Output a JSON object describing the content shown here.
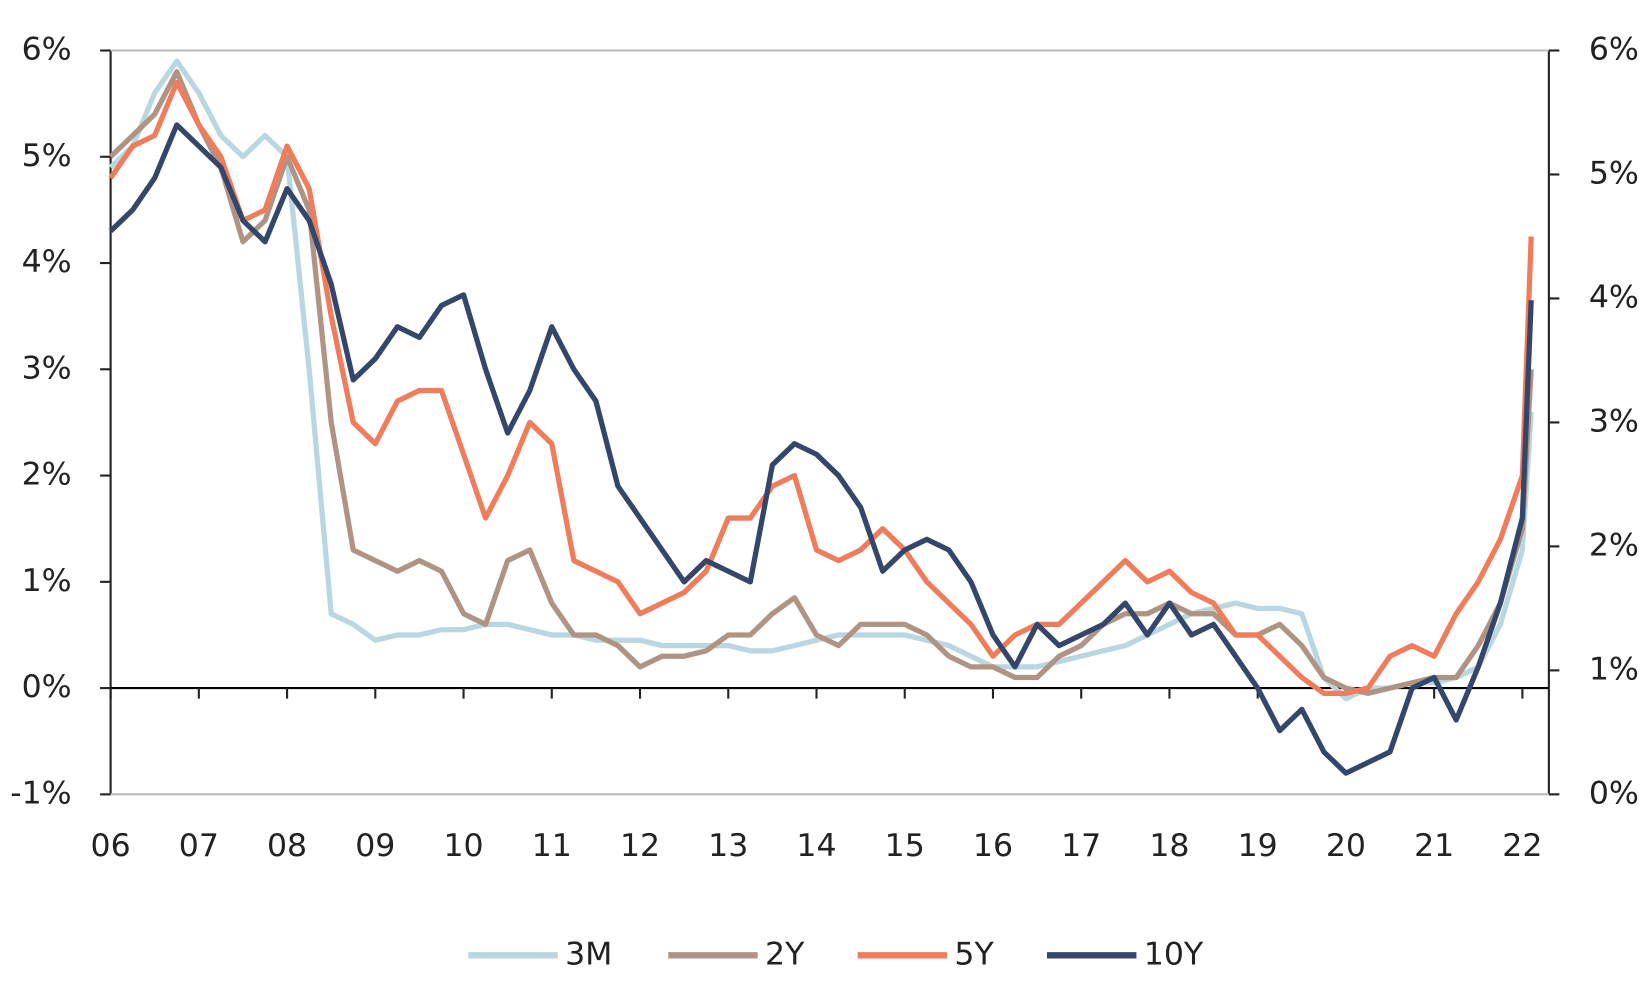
{
  "chart_data": {
    "type": "line",
    "x": [
      2006,
      2006.25,
      2006.5,
      2006.75,
      2007,
      2007.25,
      2007.5,
      2007.75,
      2008,
      2008.25,
      2008.5,
      2008.75,
      2009,
      2009.25,
      2009.5,
      2009.75,
      2010,
      2010.25,
      2010.5,
      2010.75,
      2011,
      2011.25,
      2011.5,
      2011.75,
      2012,
      2012.25,
      2012.5,
      2012.75,
      2013,
      2013.25,
      2013.5,
      2013.75,
      2014,
      2014.25,
      2014.5,
      2014.75,
      2015,
      2015.25,
      2015.5,
      2015.75,
      2016,
      2016.25,
      2016.5,
      2016.75,
      2017,
      2017.25,
      2017.5,
      2017.75,
      2018,
      2018.25,
      2018.5,
      2018.75,
      2019,
      2019.25,
      2019.5,
      2019.75,
      2020,
      2020.25,
      2020.5,
      2020.75,
      2021,
      2021.25,
      2021.5,
      2021.75,
      2022,
      2022.1
    ],
    "xlim": [
      2006,
      2022.3
    ],
    "xticks": [
      {
        "value": 2006,
        "label": "06"
      },
      {
        "value": 2007,
        "label": "07"
      },
      {
        "value": 2008,
        "label": "08"
      },
      {
        "value": 2009,
        "label": "09"
      },
      {
        "value": 2010,
        "label": "10"
      },
      {
        "value": 2011,
        "label": "11"
      },
      {
        "value": 2012,
        "label": "12"
      },
      {
        "value": 2013,
        "label": "13"
      },
      {
        "value": 2014,
        "label": "14"
      },
      {
        "value": 2015,
        "label": "15"
      },
      {
        "value": 2016,
        "label": "16"
      },
      {
        "value": 2017,
        "label": "17"
      },
      {
        "value": 2018,
        "label": "18"
      },
      {
        "value": 2019,
        "label": "19"
      },
      {
        "value": 2020,
        "label": "20"
      },
      {
        "value": 2021,
        "label": "21"
      },
      {
        "value": 2022,
        "label": "22"
      }
    ],
    "ylim": [
      -1,
      6
    ],
    "yticks": [
      {
        "value": -1,
        "label": "-1%"
      },
      {
        "value": 0,
        "label": "0%"
      },
      {
        "value": 1,
        "label": "1%"
      },
      {
        "value": 2,
        "label": "2%"
      },
      {
        "value": 3,
        "label": "3%"
      },
      {
        "value": 4,
        "label": "4%"
      },
      {
        "value": 5,
        "label": "5%"
      },
      {
        "value": 6,
        "label": "6%"
      }
    ],
    "y2lim": [
      0,
      6
    ],
    "y2ticks": [
      {
        "value": 0,
        "label": "0%"
      },
      {
        "value": 1,
        "label": "1%"
      },
      {
        "value": 2,
        "label": "2%"
      },
      {
        "value": 3,
        "label": "3%"
      },
      {
        "value": 4,
        "label": "4%"
      },
      {
        "value": 5,
        "label": "5%"
      },
      {
        "value": 6,
        "label": "6%"
      }
    ],
    "series": [
      {
        "name": "3M",
        "color": "#b9d7e1",
        "values": [
          4.9,
          5.1,
          5.6,
          5.9,
          5.6,
          5.2,
          5.0,
          5.2,
          5.0,
          3.0,
          0.7,
          0.6,
          0.45,
          0.5,
          0.5,
          0.55,
          0.55,
          0.6,
          0.6,
          0.55,
          0.5,
          0.5,
          0.45,
          0.45,
          0.45,
          0.4,
          0.4,
          0.4,
          0.4,
          0.35,
          0.35,
          0.4,
          0.45,
          0.5,
          0.5,
          0.5,
          0.5,
          0.45,
          0.4,
          0.3,
          0.2,
          0.2,
          0.2,
          0.25,
          0.3,
          0.35,
          0.4,
          0.5,
          0.6,
          0.7,
          0.75,
          0.8,
          0.75,
          0.75,
          0.7,
          0.1,
          -0.1,
          0.0,
          0.0,
          0.05,
          0.05,
          0.1,
          0.2,
          0.6,
          1.3,
          2.6
        ]
      },
      {
        "name": "2Y",
        "color": "#b09483",
        "values": [
          5.0,
          5.2,
          5.4,
          5.8,
          5.3,
          4.9,
          4.2,
          4.4,
          5.0,
          4.5,
          2.5,
          1.3,
          1.2,
          1.1,
          1.2,
          1.1,
          0.7,
          0.6,
          1.2,
          1.3,
          0.8,
          0.5,
          0.5,
          0.4,
          0.2,
          0.3,
          0.3,
          0.35,
          0.5,
          0.5,
          0.7,
          0.85,
          0.5,
          0.4,
          0.6,
          0.6,
          0.6,
          0.5,
          0.3,
          0.2,
          0.2,
          0.1,
          0.1,
          0.3,
          0.4,
          0.6,
          0.7,
          0.7,
          0.8,
          0.7,
          0.7,
          0.5,
          0.5,
          0.6,
          0.4,
          0.1,
          0.0,
          -0.05,
          0.0,
          0.05,
          0.1,
          0.1,
          0.4,
          0.8,
          1.5,
          3.0
        ]
      },
      {
        "name": "5Y",
        "color": "#ef7d5c",
        "values": [
          4.8,
          5.1,
          5.2,
          5.7,
          5.3,
          5.0,
          4.4,
          4.5,
          5.1,
          4.7,
          3.5,
          2.5,
          2.3,
          2.7,
          2.8,
          2.8,
          2.2,
          1.6,
          2.0,
          2.5,
          2.3,
          1.2,
          1.1,
          1.0,
          0.7,
          0.8,
          0.9,
          1.1,
          1.6,
          1.6,
          1.9,
          2.0,
          1.3,
          1.2,
          1.3,
          1.5,
          1.3,
          1.0,
          0.8,
          0.6,
          0.3,
          0.5,
          0.6,
          0.6,
          0.8,
          1.0,
          1.2,
          1.0,
          1.1,
          0.9,
          0.8,
          0.5,
          0.5,
          0.3,
          0.1,
          -0.05,
          -0.05,
          0.0,
          0.3,
          0.4,
          0.3,
          0.7,
          1.0,
          1.4,
          2.0,
          4.25
        ]
      },
      {
        "name": "10Y",
        "color": "#34476a",
        "values": [
          4.3,
          4.5,
          4.8,
          5.3,
          5.1,
          4.9,
          4.4,
          4.2,
          4.7,
          4.4,
          3.8,
          2.9,
          3.1,
          3.4,
          3.3,
          3.6,
          3.7,
          3.0,
          2.4,
          2.8,
          3.4,
          3.0,
          2.7,
          1.9,
          1.6,
          1.3,
          1.0,
          1.2,
          1.1,
          1.0,
          2.1,
          2.3,
          2.2,
          2.0,
          1.7,
          1.1,
          1.3,
          1.4,
          1.3,
          1.0,
          0.5,
          0.2,
          0.6,
          0.4,
          0.5,
          0.6,
          0.8,
          0.5,
          0.8,
          0.5,
          0.6,
          0.3,
          0.0,
          -0.4,
          -0.2,
          -0.6,
          -0.8,
          -0.7,
          -0.6,
          0.0,
          0.1,
          -0.3,
          0.2,
          0.8,
          1.6,
          3.65
        ]
      }
    ]
  }
}
